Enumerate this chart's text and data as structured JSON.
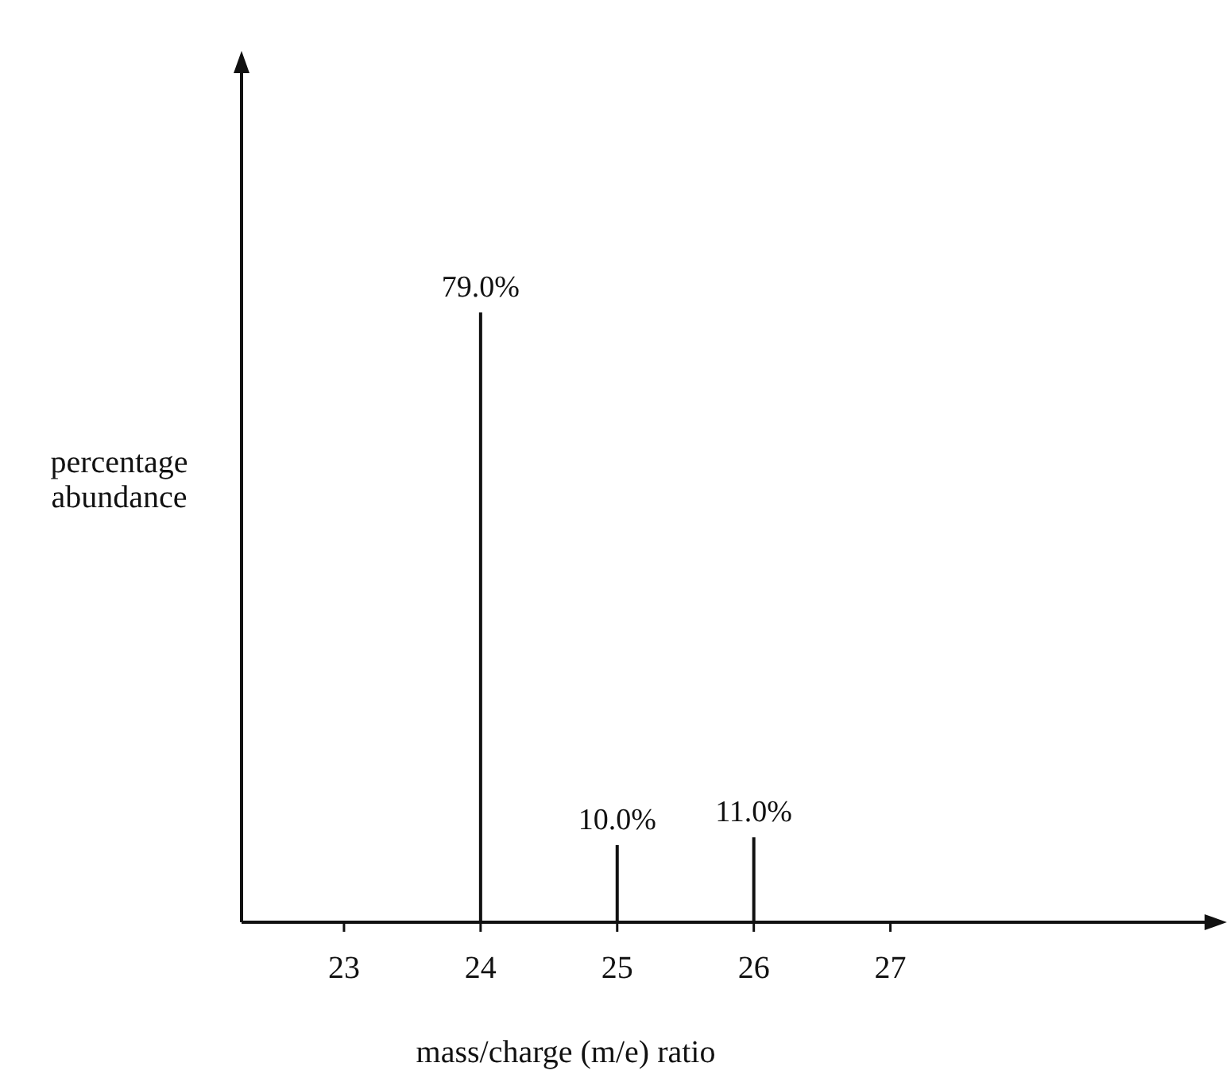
{
  "chart_data": {
    "type": "bar",
    "xlabel": "mass/charge (m/e) ratio",
    "ylabel": "percentage abundance",
    "x": [
      24,
      25,
      26
    ],
    "values": [
      79.0,
      10.0,
      11.0
    ],
    "value_labels": [
      "79.0%",
      "10.0%",
      "11.0%"
    ],
    "color": "#111111",
    "xlim": [
      22.25,
      29.3
    ],
    "xticks": [
      23,
      24,
      25,
      26,
      27
    ],
    "ylim": [
      0,
      110
    ],
    "tick_labels": "x"
  }
}
